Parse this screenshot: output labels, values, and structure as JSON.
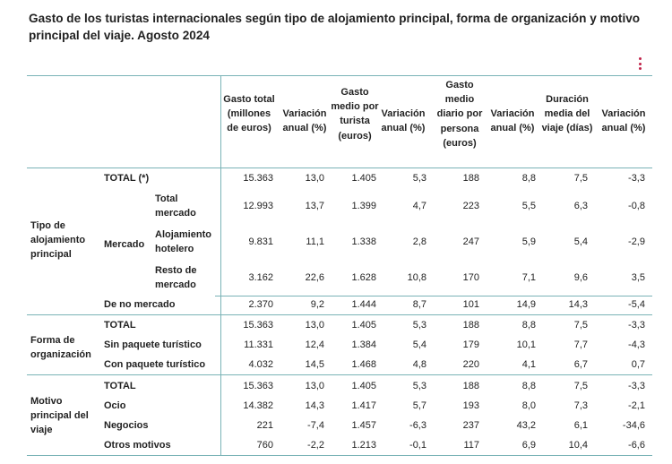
{
  "title": "Gasto de los turistas internacionales según tipo de alojamiento principal, forma de organización y motivo principal del viaje. Agosto 2024",
  "menu_icon": "kebab-menu-icon",
  "accent_color": "#c0234a",
  "rule_color": "#7ab3b6",
  "headers": [
    "Gasto total (millones de euros)",
    "Variación anual (%)",
    "Gasto medio por turista (euros)",
    "Variación anual (%)",
    "Gasto medio diario por persona (euros)",
    "Variación anual (%)",
    "Duración media del viaje (días)",
    "Variación anual (%)"
  ],
  "groups": {
    "tipo": "Tipo de alojamiento principal",
    "forma": "Forma de organización",
    "motivo": "Motivo principal del viaje",
    "mercado": "Mercado"
  },
  "rows": [
    {
      "label": "TOTAL (*)",
      "values": [
        "15.363",
        "13,0",
        "1.405",
        "5,3",
        "188",
        "8,8",
        "7,5",
        "-3,3"
      ]
    },
    {
      "label": "Total mercado",
      "values": [
        "12.993",
        "13,7",
        "1.399",
        "4,7",
        "223",
        "5,5",
        "6,3",
        "-0,8"
      ]
    },
    {
      "label": "Alojamiento hotelero",
      "values": [
        "9.831",
        "11,1",
        "1.338",
        "2,8",
        "247",
        "5,9",
        "5,4",
        "-2,9"
      ]
    },
    {
      "label": "Resto de mercado",
      "values": [
        "3.162",
        "22,6",
        "1.628",
        "10,8",
        "170",
        "7,1",
        "9,6",
        "3,5"
      ]
    },
    {
      "label": "De no mercado",
      "values": [
        "2.370",
        "9,2",
        "1.444",
        "8,7",
        "101",
        "14,9",
        "14,3",
        "-5,4"
      ]
    },
    {
      "label": "TOTAL",
      "values": [
        "15.363",
        "13,0",
        "1.405",
        "5,3",
        "188",
        "8,8",
        "7,5",
        "-3,3"
      ]
    },
    {
      "label": "Sin paquete turístico",
      "values": [
        "11.331",
        "12,4",
        "1.384",
        "5,4",
        "179",
        "10,1",
        "7,7",
        "-4,3"
      ]
    },
    {
      "label": "Con paquete turístico",
      "values": [
        "4.032",
        "14,5",
        "1.468",
        "4,8",
        "220",
        "4,1",
        "6,7",
        "0,7"
      ]
    },
    {
      "label": "TOTAL",
      "values": [
        "15.363",
        "13,0",
        "1.405",
        "5,3",
        "188",
        "8,8",
        "7,5",
        "-3,3"
      ]
    },
    {
      "label": "Ocio",
      "values": [
        "14.382",
        "14,3",
        "1.417",
        "5,7",
        "193",
        "8,0",
        "7,3",
        "-2,1"
      ]
    },
    {
      "label": "Negocios",
      "values": [
        "221",
        "-7,4",
        "1.457",
        "-6,3",
        "237",
        "43,2",
        "6,1",
        "-34,6"
      ]
    },
    {
      "label": "Otros motivos",
      "values": [
        "760",
        "-2,2",
        "1.213",
        "-0,1",
        "117",
        "6,9",
        "10,4",
        "-6,6"
      ]
    }
  ]
}
